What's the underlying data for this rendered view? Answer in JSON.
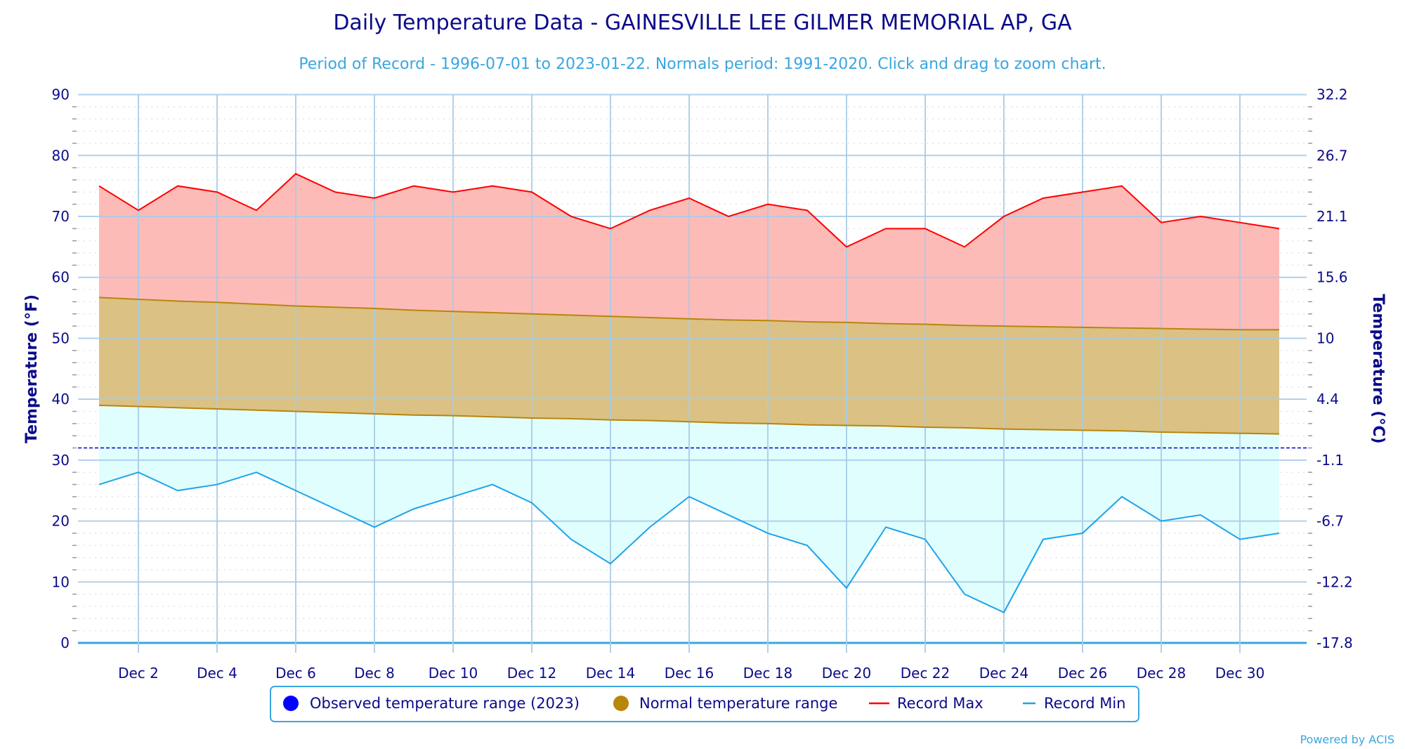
{
  "chart_data": {
    "type": "area",
    "title": "Daily Temperature Data - GAINESVILLE LEE GILMER MEMORIAL AP, GA",
    "subtitle": "Period of Record - 1996-07-01 to 2023-01-22. Normals period: 1991-2020. Click and drag to zoom chart.",
    "ylabel": "Temperature (°F)",
    "ylabel_right": "Temperature (°C)",
    "ylim": [
      0,
      90
    ],
    "yticks": [
      0,
      10,
      20,
      30,
      40,
      50,
      60,
      70,
      80,
      90
    ],
    "yticks_right": [
      "-17.8",
      "-12.2",
      "-6.7",
      "-1.1",
      "4.4",
      "10",
      "15.6",
      "21.1",
      "26.7",
      "32.2"
    ],
    "freezing_line": 32,
    "grid": true,
    "x": [
      "Dec 1",
      "Dec 2",
      "Dec 3",
      "Dec 4",
      "Dec 5",
      "Dec 6",
      "Dec 7",
      "Dec 8",
      "Dec 9",
      "Dec 10",
      "Dec 11",
      "Dec 12",
      "Dec 13",
      "Dec 14",
      "Dec 15",
      "Dec 16",
      "Dec 17",
      "Dec 18",
      "Dec 19",
      "Dec 20",
      "Dec 21",
      "Dec 22",
      "Dec 23",
      "Dec 24",
      "Dec 25",
      "Dec 26",
      "Dec 27",
      "Dec 28",
      "Dec 29",
      "Dec 30",
      "Dec 31"
    ],
    "xtick_labels": [
      "Dec 2",
      "Dec 4",
      "Dec 6",
      "Dec 8",
      "Dec 10",
      "Dec 12",
      "Dec 14",
      "Dec 16",
      "Dec 18",
      "Dec 20",
      "Dec 22",
      "Dec 24",
      "Dec 26",
      "Dec 28",
      "Dec 30"
    ],
    "series": [
      {
        "name": "Record Max",
        "color": "#ff0000",
        "fill": "#fdbbb8",
        "values": [
          75,
          71,
          75,
          74,
          71,
          77,
          74,
          73,
          75,
          74,
          75,
          74,
          70,
          68,
          71,
          73,
          70,
          72,
          71,
          65,
          68,
          68,
          65,
          70,
          73,
          74,
          75,
          69,
          70,
          69,
          68
        ]
      },
      {
        "name": "Normal High",
        "color": "#b8860b",
        "values": [
          56.7,
          56.4,
          56.1,
          55.9,
          55.6,
          55.3,
          55.1,
          54.9,
          54.6,
          54.4,
          54.2,
          54.0,
          53.8,
          53.6,
          53.4,
          53.2,
          53.0,
          52.9,
          52.7,
          52.6,
          52.4,
          52.3,
          52.1,
          52.0,
          51.9,
          51.8,
          51.7,
          51.6,
          51.5,
          51.4,
          51.4
        ]
      },
      {
        "name": "Normal Low",
        "color": "#b8860b",
        "values": [
          39.0,
          38.8,
          38.6,
          38.4,
          38.2,
          38.0,
          37.8,
          37.6,
          37.4,
          37.3,
          37.1,
          36.9,
          36.8,
          36.6,
          36.5,
          36.3,
          36.1,
          36.0,
          35.8,
          35.7,
          35.6,
          35.4,
          35.3,
          35.1,
          35.0,
          34.9,
          34.8,
          34.6,
          34.5,
          34.4,
          34.3
        ]
      },
      {
        "name": "Record Min",
        "color": "#1fa3ea",
        "fill": "#e0fefe",
        "values": [
          26,
          28,
          25,
          26,
          28,
          25,
          22,
          19,
          22,
          24,
          26,
          23,
          17,
          13,
          19,
          24,
          21,
          18,
          16,
          9,
          19,
          17,
          8,
          5,
          17,
          18,
          24,
          20,
          21,
          17,
          18
        ]
      }
    ],
    "legend": {
      "placement": "bottom-center",
      "items": [
        {
          "label": "Observed temperature range (2023)",
          "symbol": "circle",
          "color": "#0000ff"
        },
        {
          "label": "Normal temperature range",
          "symbol": "circle",
          "color": "#b8860b"
        },
        {
          "label": "Record Max",
          "symbol": "line",
          "color": "#ff0000"
        },
        {
          "label": "Record Min",
          "symbol": "line",
          "color": "#1fa3ea"
        }
      ]
    },
    "colors": {
      "normal_fill": "#dbc183",
      "grid": "#a8cce6",
      "freezing": "#0000cc"
    }
  },
  "credits": "Powered by ACIS"
}
